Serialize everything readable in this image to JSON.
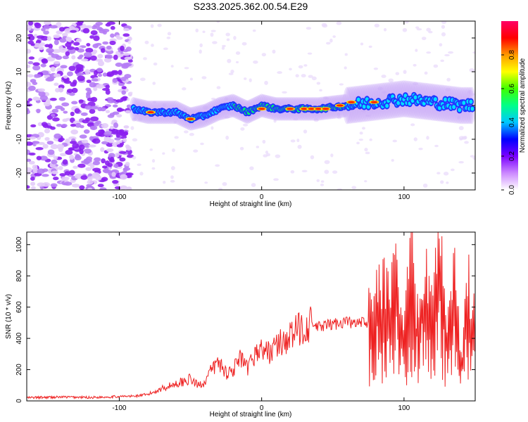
{
  "title": "S233.2025.362.00.54.E29",
  "chart_data": [
    {
      "type": "heatmap",
      "xlabel": "Height of straight line (km)",
      "ylabel": "Frequency (Hz)",
      "xlim": [
        -165,
        150
      ],
      "ylim": [
        -25,
        25
      ],
      "xticks": [
        -100,
        0,
        100
      ],
      "yticks": [
        -20,
        -10,
        0,
        10,
        20
      ],
      "colorbar": {
        "label": "Normalized spectral amplitude",
        "range": [
          0,
          1
        ],
        "ticks": [
          0.0,
          0.2,
          0.4,
          0.6,
          0.8
        ],
        "colors": [
          "#ffffff",
          "#cc88ff",
          "#7a00ff",
          "#0000ff",
          "#00c8ff",
          "#00ff88",
          "#40ff00",
          "#ffff00",
          "#ff9a00",
          "#ff0000",
          "#ff0066"
        ]
      },
      "ridge_frequency": {
        "x": [
          -90,
          -80,
          -70,
          -60,
          -50,
          -40,
          -30,
          -20,
          -10,
          0,
          10,
          20,
          40,
          60,
          80,
          100,
          120,
          140,
          148
        ],
        "y": [
          -1,
          -2,
          -2,
          -2,
          -4,
          -3,
          -1,
          0,
          -2,
          0,
          -1,
          -1,
          -1,
          0,
          1,
          2,
          1,
          0,
          0
        ]
      }
    },
    {
      "type": "line",
      "xlabel": "Height of straight line (km)",
      "ylabel": "SNR (10 * v/v)",
      "xlim": [
        -165,
        150
      ],
      "ylim": [
        0,
        1080
      ],
      "xticks": [
        -100,
        0,
        100
      ],
      "yticks": [
        0,
        200,
        400,
        600,
        800,
        1000
      ],
      "color": "#ee2222",
      "x": [
        -165,
        -140,
        -120,
        -100,
        -90,
        -80,
        -70,
        -60,
        -50,
        -45,
        -40,
        -35,
        -30,
        -25,
        -20,
        -15,
        -10,
        -5,
        0,
        5,
        10,
        15,
        20,
        25,
        30,
        35,
        40,
        45,
        50,
        55,
        60,
        65,
        70,
        75,
        80,
        85,
        90,
        95,
        100,
        105,
        110,
        115,
        120,
        125,
        130,
        135,
        140,
        145,
        150
      ],
      "y": [
        20,
        25,
        22,
        28,
        30,
        40,
        80,
        110,
        140,
        100,
        120,
        200,
        250,
        180,
        200,
        270,
        200,
        300,
        330,
        310,
        350,
        380,
        410,
        450,
        480,
        490,
        470,
        480,
        490,
        500,
        510,
        490,
        500,
        480,
        470,
        560,
        450,
        650,
        380,
        680,
        350,
        700,
        400,
        750,
        300,
        600,
        200,
        550,
        350
      ]
    }
  ]
}
